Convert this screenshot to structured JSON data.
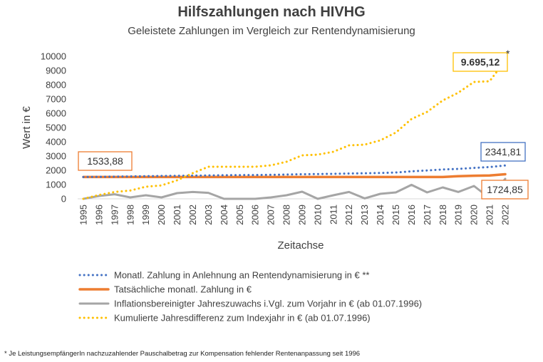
{
  "chart_data": {
    "type": "line",
    "title": "Hilfszahlungen nach HIVHG",
    "subtitle": "Geleistete Zahlungen im Vergleich zur Rentendynamisierung",
    "xlabel": "Zeitachse",
    "ylabel": "Wert in €",
    "ylim": [
      0,
      10000
    ],
    "yticks": [
      "0",
      "1000",
      "2000",
      "3000",
      "4000",
      "5000",
      "6000",
      "7000",
      "8000",
      "9000",
      "10000"
    ],
    "grid": false,
    "legend_position": "bottom",
    "categories": [
      "1995",
      "1996",
      "1997",
      "1998",
      "1999",
      "2000",
      "2001",
      "2002",
      "2003",
      "2004",
      "2005",
      "2006",
      "2007",
      "2008",
      "2009",
      "2010",
      "2011",
      "2012",
      "2013",
      "2014",
      "2015",
      "2016",
      "2017",
      "2018",
      "2019",
      "2020",
      "2021",
      "2022"
    ],
    "series": [
      {
        "name": "Monatl. Zahlung in Anlehnung an Rentendynamisierung in € **",
        "color": "#4472C4",
        "style": "dotted",
        "values": [
          1534,
          1545,
          1560,
          1575,
          1590,
          1605,
          1615,
          1625,
          1640,
          1655,
          1665,
          1670,
          1685,
          1705,
          1725,
          1740,
          1755,
          1775,
          1795,
          1815,
          1845,
          1930,
          1990,
          2060,
          2100,
          2170,
          2230,
          2342
        ]
      },
      {
        "name": "Tatsächliche monatl. Zahlung in €",
        "color": "#ED7D31",
        "style": "solid-thick",
        "values": [
          1534,
          1534,
          1534,
          1534,
          1534,
          1534,
          1534,
          1534,
          1534,
          1534,
          1534,
          1534,
          1534,
          1534,
          1534,
          1534,
          1534,
          1534,
          1534,
          1534,
          1534,
          1534,
          1534,
          1534,
          1590,
          1620,
          1640,
          1725
        ]
      },
      {
        "name": "Inflationsbereinigter Jahreszuwachs i.Vgl. zum Vorjahr in € (ab 01.07.1996)",
        "color": "#A5A5A5",
        "style": "solid",
        "values": [
          0,
          200,
          320,
          100,
          250,
          100,
          400,
          480,
          420,
          0,
          0,
          0,
          100,
          250,
          500,
          0,
          250,
          480,
          30,
          350,
          450,
          980,
          450,
          800,
          480,
          900,
          50,
          1400
        ]
      },
      {
        "name": "Kumulierte Jahresdifferenz zum Indexjahr in € (ab 01.07.1996)",
        "color": "#FFC000",
        "style": "dotted",
        "values": [
          0,
          270,
          480,
          580,
          850,
          940,
          1300,
          1800,
          2250,
          2250,
          2250,
          2250,
          2350,
          2600,
          3050,
          3100,
          3300,
          3750,
          3800,
          4100,
          4650,
          5600,
          6100,
          6900,
          7450,
          8200,
          8250,
          9695
        ]
      }
    ],
    "callouts": [
      {
        "label": "1533,88",
        "series": 1,
        "index": 0,
        "border": "#ED7D31"
      },
      {
        "label": "2341,81",
        "series": 0,
        "index": 27,
        "border": "#4472C4"
      },
      {
        "label": "1724,85",
        "series": 1,
        "index": 27,
        "border": "#ED7D31"
      },
      {
        "label": "9.695,12",
        "series": 3,
        "index": 27,
        "border": "#FFC000",
        "marker": "*"
      }
    ],
    "footnote": "* Je LeistungsempfängerIn nachzuzahlender Pauschalbetrag zur Kompensation fehlender Rentenanpassung seit 1996"
  }
}
